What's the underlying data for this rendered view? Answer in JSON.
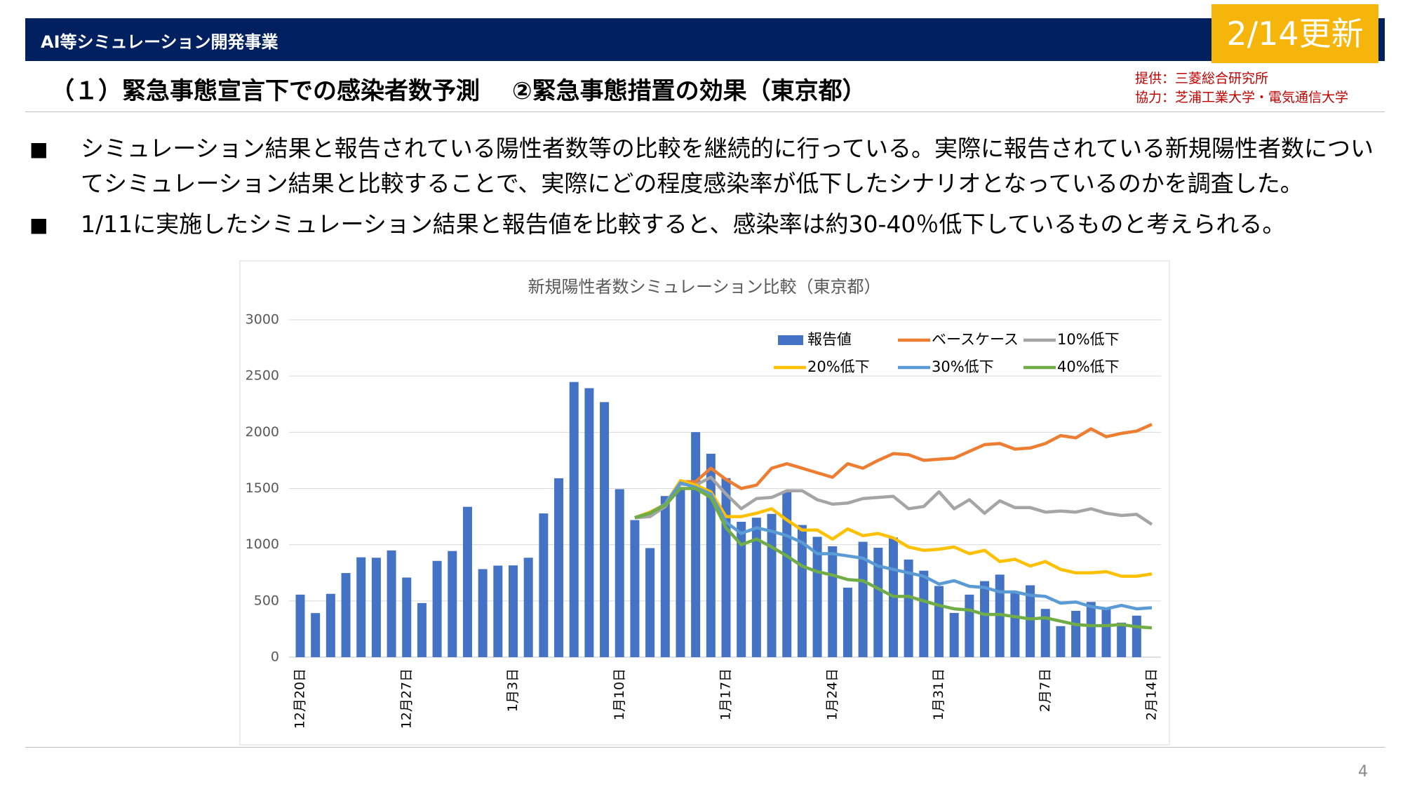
{
  "header": {
    "title": "AI等シミュレーション開発事業",
    "badge": "2/14更新",
    "subtitle": "（１）緊急事態宣言下での感染者数予測　 ②緊急事態措置の効果（東京都）",
    "credits": [
      "提供：三菱総合研究所",
      "協力：芝浦工業大学・電気通信大学"
    ]
  },
  "bullets": [
    {
      "mark": "■",
      "text": "シミュレーション結果と報告されている陽性者数等の比較を継続的に行っている。実際に報告されている新規陽性者数についてシミュレーション結果と比較することで、実際にどの程度感染率が低下したシナリオとなっているのかを調査した。"
    },
    {
      "mark": "■",
      "text": "1/11に実施したシミュレーション結果と報告値を比較すると、感染率は約30-40％低下しているものと考えられる。"
    }
  ],
  "page_number": "4",
  "chart_data": {
    "type": "bar",
    "title": "新規陽性者数シミュレーション比較（東京都）",
    "categories": [
      "12月20日",
      null,
      null,
      null,
      null,
      null,
      null,
      "12月27日",
      null,
      null,
      null,
      null,
      null,
      null,
      "1月3日",
      null,
      null,
      null,
      null,
      null,
      null,
      "1月10日",
      null,
      null,
      null,
      null,
      null,
      null,
      "1月17日",
      null,
      null,
      null,
      null,
      null,
      null,
      "1月24日",
      null,
      null,
      null,
      null,
      null,
      null,
      "1月31日",
      null,
      null,
      null,
      null,
      null,
      null,
      "2月7日",
      null,
      null,
      null,
      null,
      null,
      null,
      "2月14日"
    ],
    "ylim": [
      0,
      3000
    ],
    "yticks": [
      0,
      500,
      1000,
      1500,
      2000,
      2500,
      3000
    ],
    "grid": true,
    "series": [
      {
        "name": "報告値",
        "type": "bar",
        "color": "#4472c4",
        "values": [
          556,
          392,
          563,
          748,
          888,
          884,
          949,
          708,
          481,
          856,
          944,
          1337,
          783,
          814,
          816,
          884,
          1278,
          1591,
          2447,
          2392,
          2268,
          1494,
          1219,
          970,
          1433,
          1502,
          2001,
          1809,
          1592,
          1204,
          1240,
          1274,
          1471,
          1175,
          1070,
          986,
          618,
          1026,
          973,
          1064,
          868,
          769,
          633,
          393,
          556,
          676,
          734,
          577,
          639,
          429,
          276,
          412,
          491,
          434,
          307,
          369,
          null
        ]
      },
      {
        "name": "ベースケース",
        "type": "line",
        "color": "#ed7d31",
        "values": [
          null,
          null,
          null,
          null,
          null,
          null,
          null,
          null,
          null,
          null,
          null,
          null,
          null,
          null,
          null,
          null,
          null,
          null,
          null,
          null,
          null,
          null,
          1240,
          1290,
          1350,
          1560,
          1560,
          1680,
          1580,
          1500,
          1530,
          1680,
          1720,
          1680,
          1640,
          1600,
          1720,
          1680,
          1750,
          1810,
          1800,
          1750,
          1760,
          1770,
          1830,
          1890,
          1900,
          1850,
          1860,
          1900,
          1970,
          1950,
          2030,
          1960,
          1990,
          2010,
          2070
        ]
      },
      {
        "name": "10%低下",
        "type": "line",
        "color": "#a5a5a5",
        "values": [
          null,
          null,
          null,
          null,
          null,
          null,
          null,
          null,
          null,
          null,
          null,
          null,
          null,
          null,
          null,
          null,
          null,
          null,
          null,
          null,
          null,
          null,
          1240,
          1250,
          1340,
          1540,
          1530,
          1600,
          1450,
          1320,
          1410,
          1420,
          1480,
          1480,
          1400,
          1360,
          1370,
          1410,
          1420,
          1430,
          1320,
          1340,
          1470,
          1320,
          1400,
          1280,
          1390,
          1330,
          1330,
          1290,
          1300,
          1290,
          1320,
          1280,
          1260,
          1270,
          1180
        ]
      },
      {
        "name": "20%低下",
        "type": "line",
        "color": "#ffc000",
        "values": [
          null,
          null,
          null,
          null,
          null,
          null,
          null,
          null,
          null,
          null,
          null,
          null,
          null,
          null,
          null,
          null,
          null,
          null,
          null,
          null,
          null,
          null,
          1240,
          1290,
          1360,
          1570,
          1530,
          1470,
          1250,
          1250,
          1280,
          1320,
          1220,
          1130,
          1130,
          1050,
          1140,
          1080,
          1100,
          1060,
          980,
          950,
          960,
          980,
          920,
          950,
          850,
          870,
          810,
          850,
          780,
          750,
          750,
          760,
          720,
          720,
          740
        ]
      },
      {
        "name": "30%低下",
        "type": "line",
        "color": "#5b9bd5",
        "values": [
          null,
          null,
          null,
          null,
          null,
          null,
          null,
          null,
          null,
          null,
          null,
          null,
          null,
          null,
          null,
          null,
          null,
          null,
          null,
          null,
          null,
          null,
          1240,
          1280,
          1360,
          1550,
          1510,
          1450,
          1200,
          1100,
          1150,
          1120,
          1080,
          1020,
          920,
          920,
          900,
          880,
          810,
          780,
          750,
          720,
          650,
          680,
          630,
          620,
          580,
          580,
          550,
          540,
          480,
          490,
          450,
          430,
          460,
          430,
          440
        ]
      },
      {
        "name": "40%低下",
        "type": "line",
        "color": "#70ad47",
        "values": [
          null,
          null,
          null,
          null,
          null,
          null,
          null,
          null,
          null,
          null,
          null,
          null,
          null,
          null,
          null,
          null,
          null,
          null,
          null,
          null,
          null,
          null,
          1240,
          1280,
          1350,
          1500,
          1500,
          1420,
          1150,
          1000,
          1050,
          980,
          900,
          810,
          760,
          730,
          690,
          680,
          610,
          540,
          540,
          500,
          460,
          430,
          420,
          380,
          380,
          360,
          340,
          350,
          320,
          290,
          280,
          280,
          290,
          270,
          260
        ]
      }
    ]
  }
}
